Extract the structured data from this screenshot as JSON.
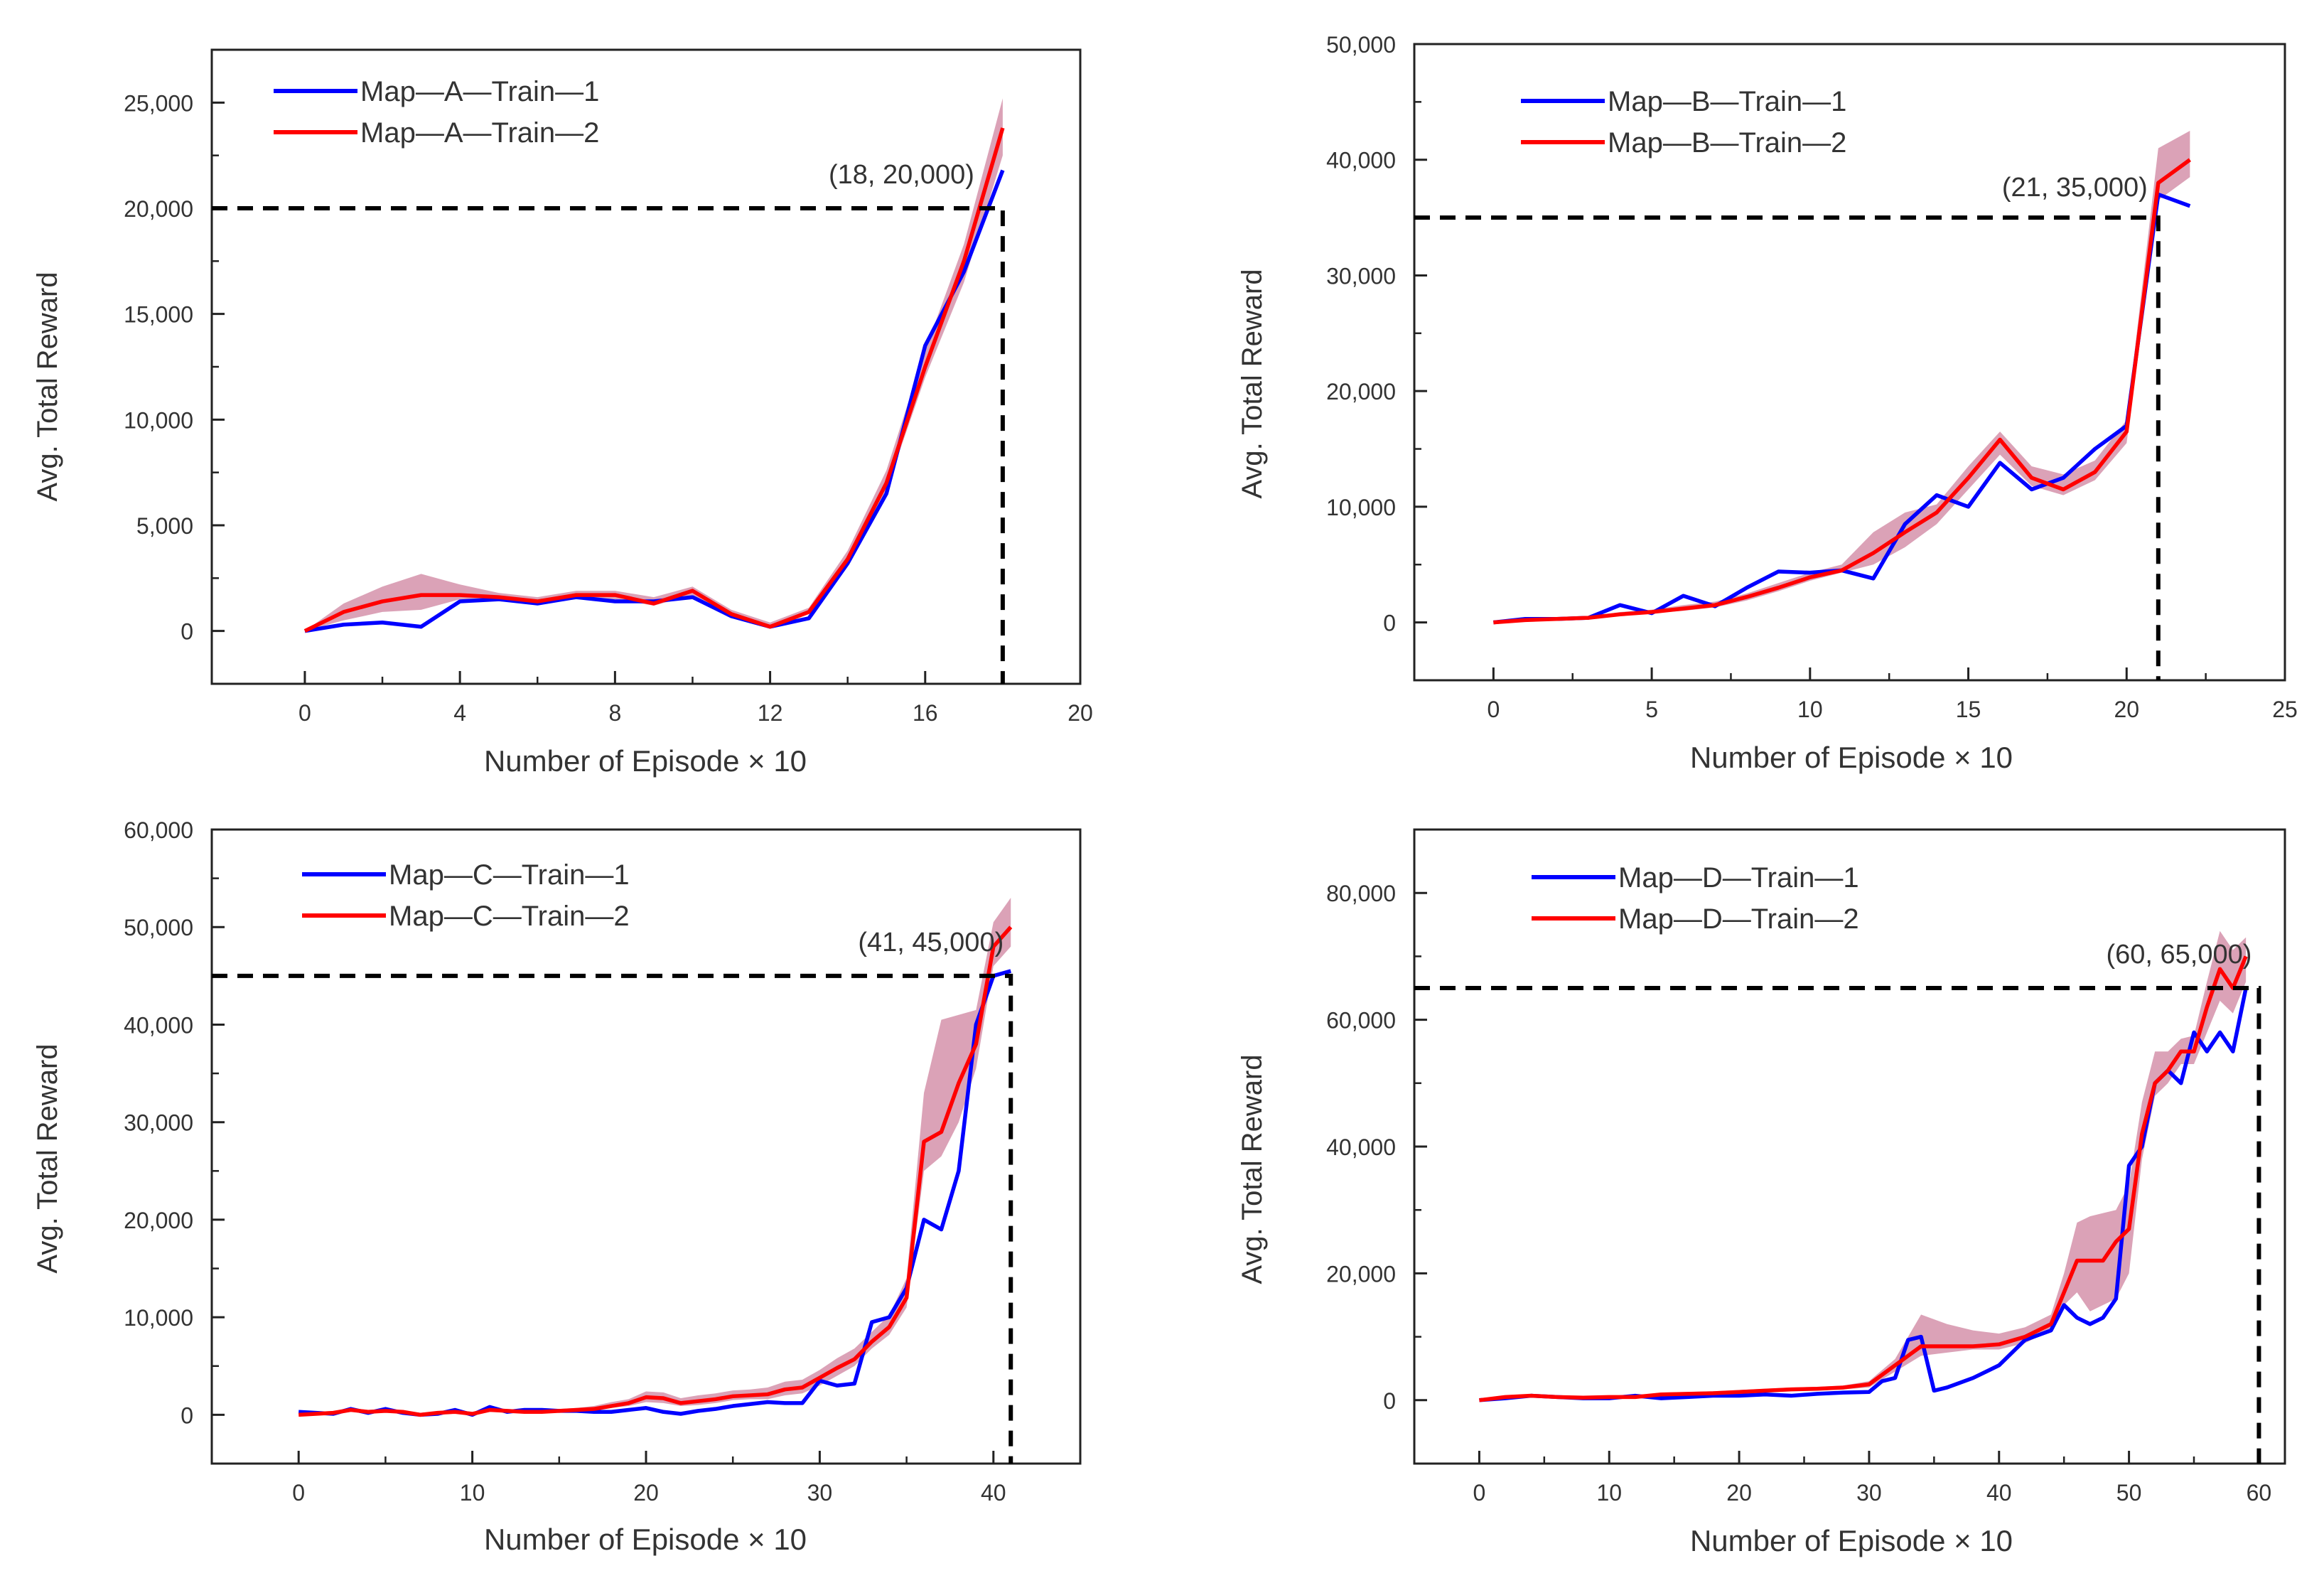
{
  "chart_data": [
    {
      "type": "line",
      "id": "map-a",
      "xlabel": "Number of Episode × 10",
      "ylabel": "Avg. Total Reward",
      "xlim": [
        -2.4,
        20
      ],
      "ylim": [
        -2500,
        27500
      ],
      "xticks": [
        0,
        4,
        8,
        12,
        16,
        20
      ],
      "yticks": [
        0,
        5000,
        10000,
        15000,
        20000,
        25000
      ],
      "xtick_labels": [
        "0",
        "4",
        "8",
        "12",
        "16",
        "20"
      ],
      "ytick_labels": [
        "0",
        "5,000",
        "10,000",
        "15,000",
        "20,000",
        "25,000"
      ],
      "legend_position": "top-left",
      "annotation": {
        "text": "(18, 20,000)",
        "x": 18,
        "y": 20000
      },
      "series": [
        {
          "name": "Map—A—Train—1",
          "color": "#0000ff",
          "x": [
            0,
            1,
            2,
            3,
            4,
            5,
            6,
            7,
            8,
            9,
            10,
            11,
            12,
            13,
            14,
            15,
            16,
            17,
            18
          ],
          "values": [
            0,
            300,
            400,
            200,
            1400,
            1500,
            1300,
            1600,
            1400,
            1400,
            1600,
            700,
            200,
            600,
            3200,
            6500,
            13500,
            17000,
            21800
          ]
        },
        {
          "name": "Map—A—Train—2",
          "color": "#ff0000",
          "x": [
            0,
            1,
            2,
            3,
            4,
            5,
            6,
            7,
            8,
            9,
            10,
            11,
            12,
            13,
            14,
            15,
            16,
            17,
            18
          ],
          "values": [
            0,
            900,
            1400,
            1700,
            1700,
            1600,
            1400,
            1700,
            1700,
            1300,
            1900,
            800,
            200,
            900,
            3400,
            7000,
            12500,
            17500,
            23800
          ],
          "band_low": [
            0,
            500,
            900,
            1000,
            1500,
            1400,
            1300,
            1500,
            1500,
            1200,
            1700,
            700,
            150,
            800,
            3200,
            6700,
            12000,
            16500,
            22500
          ],
          "band_high": [
            0,
            1300,
            2100,
            2700,
            2200,
            1800,
            1600,
            1900,
            1900,
            1600,
            2100,
            1000,
            400,
            1100,
            3800,
            7600,
            13300,
            18300,
            25200
          ]
        }
      ]
    },
    {
      "type": "line",
      "id": "map-b",
      "xlabel": "Number of Episode × 10",
      "ylabel": "Avg. Total Reward",
      "xlim": [
        -2.5,
        25
      ],
      "ylim": [
        -5000,
        50000
      ],
      "xticks": [
        0,
        5,
        10,
        15,
        20,
        25
      ],
      "yticks": [
        0,
        10000,
        20000,
        30000,
        40000,
        50000
      ],
      "xtick_labels": [
        "0",
        "5",
        "10",
        "15",
        "20",
        "25"
      ],
      "ytick_labels": [
        "0",
        "10,000",
        "20,000",
        "30,000",
        "40,000",
        "50,000"
      ],
      "legend_position": "top-left",
      "annotation": {
        "text": "(21, 35,000)",
        "x": 21,
        "y": 35000
      },
      "series": [
        {
          "name": "Map—B—Train—1",
          "color": "#0000ff",
          "x": [
            0,
            1,
            2,
            3,
            4,
            5,
            6,
            7,
            8,
            9,
            10,
            11,
            12,
            13,
            14,
            15,
            16,
            17,
            18,
            19,
            20,
            21,
            22
          ],
          "values": [
            0,
            300,
            300,
            400,
            1500,
            800,
            2300,
            1400,
            3000,
            4400,
            4300,
            4500,
            3800,
            8500,
            11000,
            10000,
            13800,
            11500,
            12500,
            15000,
            17000,
            37000,
            36000
          ]
        },
        {
          "name": "Map—B—Train—2",
          "color": "#ff0000",
          "x": [
            0,
            1,
            2,
            3,
            4,
            5,
            6,
            7,
            8,
            9,
            10,
            11,
            12,
            13,
            14,
            15,
            16,
            17,
            18,
            19,
            20,
            21,
            22
          ],
          "values": [
            0,
            200,
            300,
            400,
            700,
            900,
            1200,
            1500,
            2200,
            3000,
            3900,
            4500,
            6000,
            7800,
            9500,
            12500,
            15800,
            12500,
            11500,
            13000,
            16500,
            38000,
            40000
          ],
          "band_low": [
            0,
            150,
            250,
            300,
            600,
            800,
            1000,
            1300,
            1900,
            2700,
            3600,
            4300,
            5000,
            6500,
            8500,
            11500,
            14500,
            11800,
            11000,
            12300,
            15500,
            36500,
            38500
          ],
          "band_high": [
            0,
            250,
            350,
            500,
            900,
            1100,
            1500,
            1800,
            2500,
            3400,
            4300,
            5000,
            7800,
            9500,
            10200,
            13500,
            16500,
            13500,
            12800,
            14000,
            17500,
            41000,
            42500
          ]
        }
      ]
    },
    {
      "type": "line",
      "id": "map-c",
      "xlabel": "Number of Episode × 10",
      "ylabel": "Avg. Total Reward",
      "xlim": [
        -5,
        45
      ],
      "ylim": [
        -5000,
        60000
      ],
      "xticks": [
        0,
        10,
        20,
        30,
        40
      ],
      "yticks": [
        0,
        10000,
        20000,
        30000,
        40000,
        50000,
        60000
      ],
      "xtick_labels": [
        "0",
        "10",
        "20",
        "30",
        "40"
      ],
      "ytick_labels": [
        "0",
        "10,000",
        "20,000",
        "30,000",
        "40,000",
        "50,000",
        "60,000"
      ],
      "legend_position": "top-left",
      "annotation": {
        "text": "(41, 45,000)",
        "x": 41,
        "y": 45000
      },
      "series": [
        {
          "name": "Map—C—Train—1",
          "color": "#0000ff",
          "x": [
            0,
            2,
            3,
            4,
            5,
            6,
            7,
            8,
            9,
            10,
            11,
            12,
            13,
            14,
            15,
            16,
            17,
            18,
            19,
            20,
            21,
            22,
            23,
            24,
            25,
            26,
            27,
            28,
            29,
            30,
            31,
            32,
            33,
            34,
            35,
            36,
            37,
            38,
            39,
            40,
            41
          ],
          "values": [
            300,
            100,
            600,
            200,
            600,
            200,
            0,
            100,
            500,
            0,
            800,
            300,
            500,
            500,
            400,
            400,
            300,
            300,
            500,
            700,
            300,
            100,
            400,
            600,
            900,
            1100,
            1300,
            1200,
            1200,
            3500,
            3000,
            3200,
            9500,
            10000,
            13000,
            20000,
            19000,
            25000,
            40000,
            45000,
            45500
          ]
        },
        {
          "name": "Map—C—Train—2",
          "color": "#ff0000",
          "x": [
            0,
            2,
            3,
            4,
            5,
            6,
            7,
            8,
            9,
            10,
            11,
            12,
            13,
            14,
            15,
            16,
            17,
            18,
            19,
            20,
            21,
            22,
            23,
            24,
            25,
            26,
            27,
            28,
            29,
            30,
            31,
            32,
            33,
            34,
            35,
            36,
            37,
            38,
            39,
            40,
            41
          ],
          "values": [
            0,
            200,
            500,
            300,
            400,
            300,
            0,
            200,
            300,
            100,
            500,
            400,
            300,
            300,
            400,
            500,
            600,
            900,
            1200,
            1800,
            1700,
            1200,
            1400,
            1600,
            1900,
            2000,
            2100,
            2600,
            2800,
            3800,
            4800,
            5700,
            7500,
            9000,
            12000,
            28000,
            29000,
            34000,
            38000,
            48000,
            50000
          ],
          "band_low": [
            0,
            100,
            300,
            200,
            300,
            200,
            0,
            100,
            200,
            50,
            300,
            300,
            200,
            200,
            300,
            300,
            400,
            700,
            900,
            1300,
            1200,
            900,
            1000,
            1200,
            1500,
            1600,
            1600,
            2000,
            2200,
            3000,
            4000,
            5000,
            6800,
            8200,
            11000,
            25000,
            26500,
            30000,
            35500,
            46000,
            48000
          ],
          "band_high": [
            200,
            400,
            700,
            500,
            600,
            400,
            200,
            300,
            500,
            300,
            700,
            600,
            500,
            500,
            600,
            700,
            900,
            1300,
            1600,
            2400,
            2300,
            1700,
            2000,
            2200,
            2500,
            2600,
            2800,
            3400,
            3600,
            4600,
            5800,
            6800,
            8500,
            10200,
            14000,
            33000,
            40500,
            41000,
            41500,
            50500,
            53000
          ]
        }
      ]
    },
    {
      "type": "line",
      "id": "map-d",
      "xlabel": "Number of Episode × 10",
      "ylabel": "Avg. Total Reward",
      "xlim": [
        -5,
        62
      ],
      "ylim": [
        -10000,
        90000
      ],
      "xticks": [
        0,
        10,
        20,
        30,
        40,
        50,
        60
      ],
      "yticks": [
        0,
        20000,
        40000,
        60000,
        80000
      ],
      "xtick_labels": [
        "0",
        "10",
        "20",
        "30",
        "40",
        "50",
        "60"
      ],
      "ytick_labels": [
        "0",
        "20,000",
        "40,000",
        "60,000",
        "80,000"
      ],
      "legend_position": "top-left",
      "annotation": {
        "text": "(60, 65,000)",
        "x": 60,
        "y": 65000
      },
      "series": [
        {
          "name": "Map—D—Train—1",
          "color": "#0000ff",
          "x": [
            0,
            2,
            4,
            6,
            8,
            10,
            12,
            14,
            16,
            18,
            20,
            22,
            24,
            26,
            28,
            30,
            31,
            32,
            33,
            34,
            35,
            36,
            38,
            40,
            42,
            44,
            45,
            46,
            47,
            48,
            49,
            50,
            51,
            52,
            53,
            54,
            55,
            56,
            57,
            58,
            59
          ],
          "values": [
            0,
            300,
            700,
            500,
            300,
            300,
            700,
            300,
            500,
            700,
            700,
            900,
            700,
            1000,
            1200,
            1300,
            3000,
            3500,
            9500,
            10000,
            1500,
            2000,
            3500,
            5500,
            9500,
            11000,
            15000,
            13000,
            12000,
            13000,
            16000,
            37000,
            40000,
            50000,
            52000,
            50000,
            58000,
            55000,
            58000,
            55000,
            65000
          ]
        },
        {
          "name": "Map—D—Train—2",
          "color": "#ff0000",
          "x": [
            0,
            2,
            4,
            6,
            8,
            10,
            12,
            14,
            16,
            18,
            20,
            22,
            24,
            26,
            28,
            30,
            32,
            34,
            36,
            38,
            40,
            42,
            44,
            45,
            46,
            47,
            48,
            49,
            50,
            51,
            52,
            53,
            54,
            55,
            56,
            57,
            58,
            59
          ],
          "values": [
            0,
            500,
            700,
            500,
            400,
            500,
            500,
            900,
            1000,
            1100,
            1300,
            1500,
            1700,
            1800,
            2000,
            2500,
            5500,
            8500,
            8500,
            8500,
            8800,
            10000,
            12000,
            17000,
            22000,
            22000,
            22000,
            25000,
            27000,
            42000,
            50000,
            52000,
            55000,
            55000,
            62000,
            68000,
            65000,
            70000
          ],
          "band_low": [
            0,
            300,
            500,
            300,
            200,
            300,
            300,
            600,
            700,
            800,
            1000,
            1200,
            1400,
            1500,
            1700,
            2000,
            4500,
            7000,
            7500,
            8000,
            8000,
            9000,
            11000,
            15000,
            17000,
            14000,
            15000,
            16000,
            20000,
            38000,
            48000,
            50000,
            53000,
            53000,
            58000,
            63000,
            61000,
            66000
          ],
          "band_high": [
            0,
            700,
            900,
            700,
            600,
            700,
            700,
            1200,
            1300,
            1400,
            1600,
            1800,
            2000,
            2100,
            2300,
            3000,
            6500,
            13500,
            12000,
            11000,
            10500,
            11500,
            13500,
            20000,
            28000,
            29000,
            29500,
            30000,
            34000,
            47000,
            55000,
            55000,
            57000,
            57500,
            66000,
            74000,
            71000,
            73000
          ]
        }
      ]
    }
  ]
}
